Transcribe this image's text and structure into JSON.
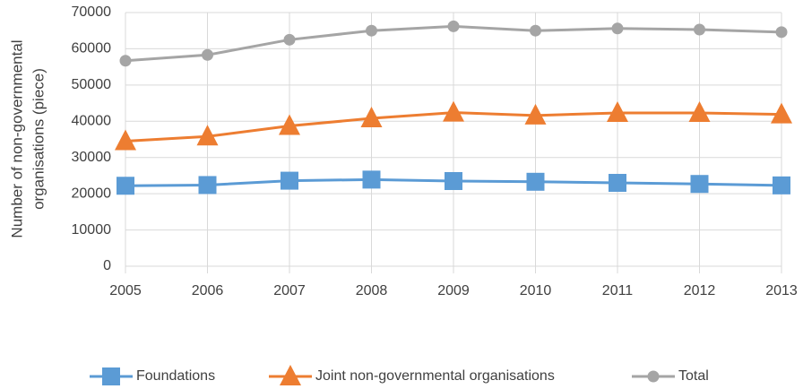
{
  "chart_data": {
    "type": "line",
    "ylabel": [
      "Number of non-governmental",
      "organisations (piece)"
    ],
    "x": [
      2005,
      2006,
      2007,
      2008,
      2009,
      2010,
      2011,
      2012,
      2013
    ],
    "series": [
      {
        "name": "Foundations",
        "color": "#5b9bd5",
        "marker": "square",
        "values": [
          22200,
          22400,
          23600,
          23900,
          23500,
          23300,
          23000,
          22700,
          22300
        ]
      },
      {
        "name": "Joint non-governmental organisations",
        "color": "#ed7d31",
        "marker": "triangle",
        "values": [
          34500,
          35800,
          38700,
          40800,
          42400,
          41600,
          42300,
          42300,
          41900
        ]
      },
      {
        "name": "Total",
        "color": "#a5a5a5",
        "marker": "circle",
        "values": [
          56700,
          58300,
          62500,
          65000,
          66200,
          65000,
          65600,
          65300,
          64600
        ]
      }
    ],
    "xlim": [
      2005,
      2013
    ],
    "xticks": [
      2005,
      2006,
      2007,
      2008,
      2009,
      2010,
      2011,
      2012,
      2013
    ],
    "ylim": [
      0,
      70000
    ],
    "yticks": [
      0,
      10000,
      20000,
      30000,
      40000,
      50000,
      60000,
      70000
    ],
    "grid": true,
    "legend": "bottom"
  }
}
